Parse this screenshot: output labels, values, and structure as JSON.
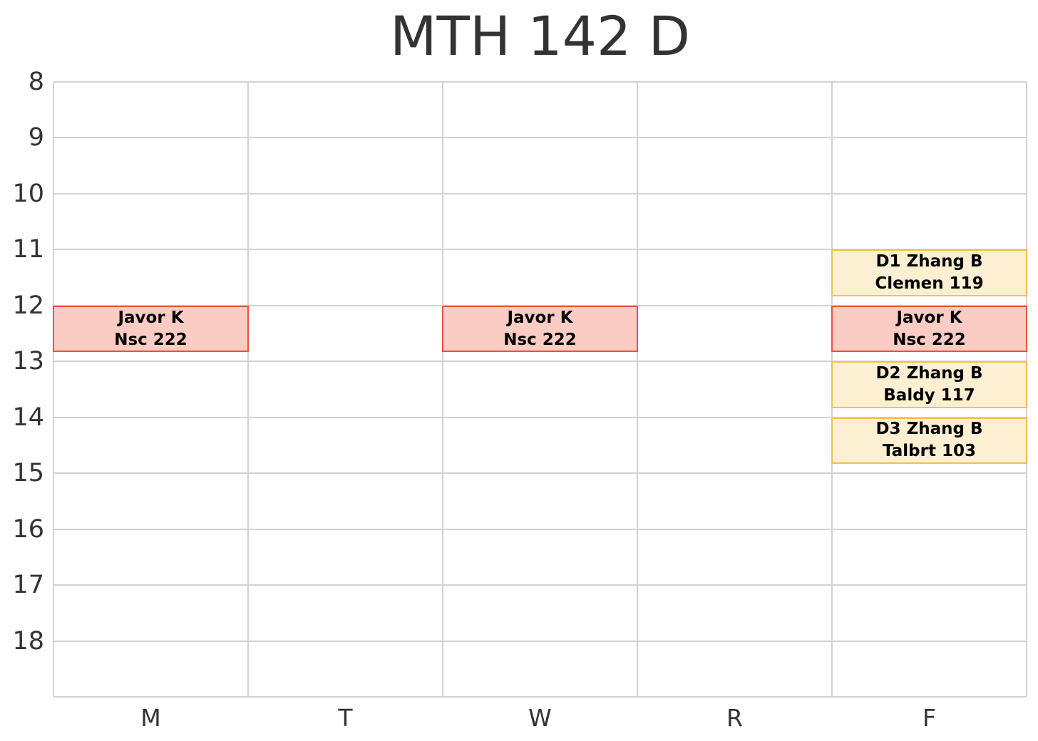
{
  "title": "MTH 142 D",
  "colors": {
    "grid": "#d2d2d2",
    "axis_text": "#333333",
    "block_text": "#000000"
  },
  "kinds": {
    "lecture": {
      "fill": "#fbccc3",
      "border": "#e8533c"
    },
    "recitation": {
      "fill": "#fcefd2",
      "border": "#f5c148"
    }
  },
  "chart_data": {
    "type": "schedule",
    "title": "MTH 142 D",
    "x_categories": [
      "M",
      "T",
      "W",
      "R",
      "F"
    ],
    "y_ticks": [
      8,
      9,
      10,
      11,
      12,
      13,
      14,
      15,
      16,
      17,
      18
    ],
    "y_range": [
      8,
      19
    ],
    "grid": "on",
    "events": [
      {
        "day": "M",
        "start": 12.0,
        "end": 12.8333,
        "line1": "Javor K",
        "line2": "Nsc 222",
        "kind": "lecture"
      },
      {
        "day": "W",
        "start": 12.0,
        "end": 12.8333,
        "line1": "Javor K",
        "line2": "Nsc 222",
        "kind": "lecture"
      },
      {
        "day": "F",
        "start": 11.0,
        "end": 11.8333,
        "line1": "D1 Zhang B",
        "line2": "Clemen 119",
        "kind": "recitation"
      },
      {
        "day": "F",
        "start": 12.0,
        "end": 12.8333,
        "line1": "Javor K",
        "line2": "Nsc 222",
        "kind": "lecture"
      },
      {
        "day": "F",
        "start": 13.0,
        "end": 13.8333,
        "line1": "D2 Zhang B",
        "line2": "Baldy 117",
        "kind": "recitation"
      },
      {
        "day": "F",
        "start": 14.0,
        "end": 14.8333,
        "line1": "D3 Zhang B",
        "line2": "Talbrt 103",
        "kind": "recitation"
      }
    ]
  }
}
